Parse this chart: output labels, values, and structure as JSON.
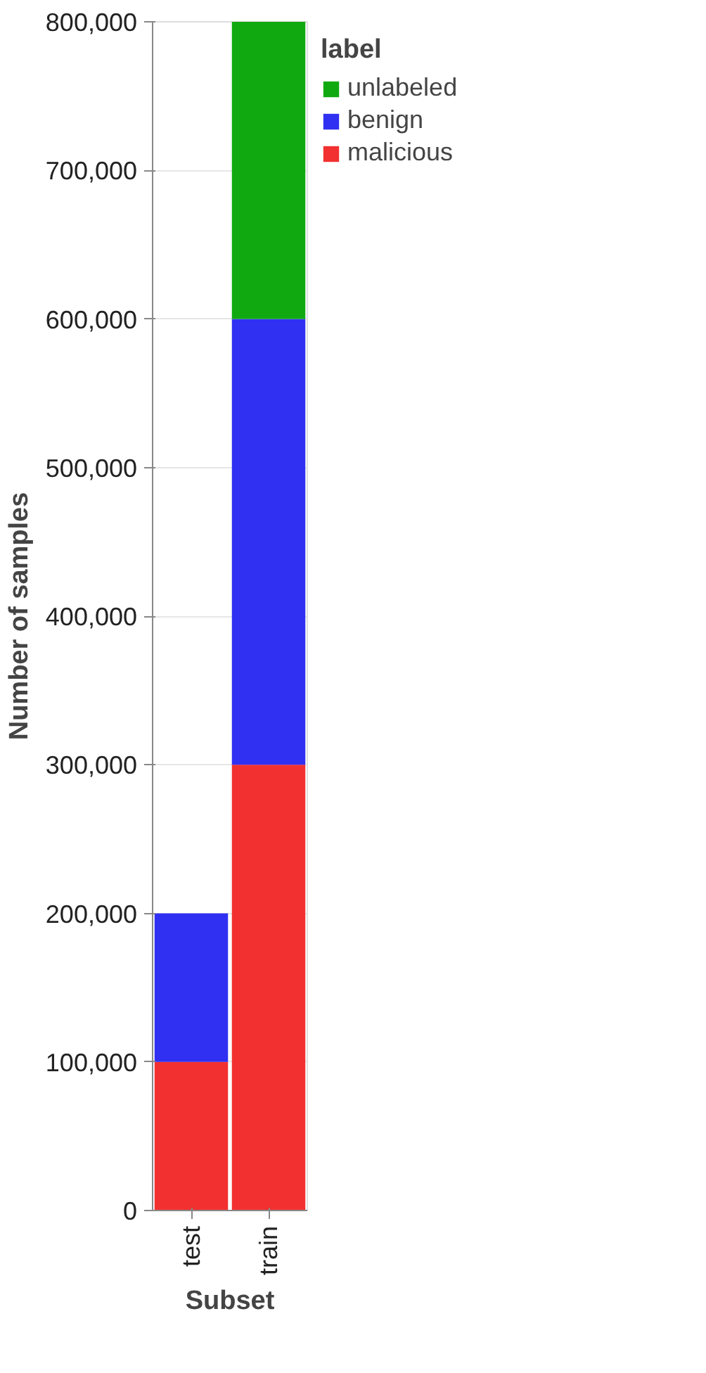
{
  "chart_data": {
    "type": "bar",
    "stacked": true,
    "xlabel": "Subset",
    "ylabel": "Number of samples",
    "legend_title": "label",
    "legend": "top right",
    "grid": "y",
    "categories": [
      "test",
      "train"
    ],
    "ylim": [
      0,
      800000
    ],
    "yticks": [
      {
        "value": 0,
        "label": "0"
      },
      {
        "value": 100000,
        "label": "100,000"
      },
      {
        "value": 200000,
        "label": "200,000"
      },
      {
        "value": 300000,
        "label": "300,000"
      },
      {
        "value": 400000,
        "label": "400,000"
      },
      {
        "value": 500000,
        "label": "500,000"
      },
      {
        "value": 600000,
        "label": "600,000"
      },
      {
        "value": 700000,
        "label": "700,000"
      },
      {
        "value": 800000,
        "label": "800,000"
      }
    ],
    "series": [
      {
        "name": "malicious",
        "color": "#f23030",
        "values": [
          100000,
          300000
        ]
      },
      {
        "name": "benign",
        "color": "#3030f2",
        "values": [
          100000,
          300000
        ]
      },
      {
        "name": "unlabeled",
        "color": "#10aa10",
        "values": [
          null,
          200000
        ]
      }
    ]
  }
}
